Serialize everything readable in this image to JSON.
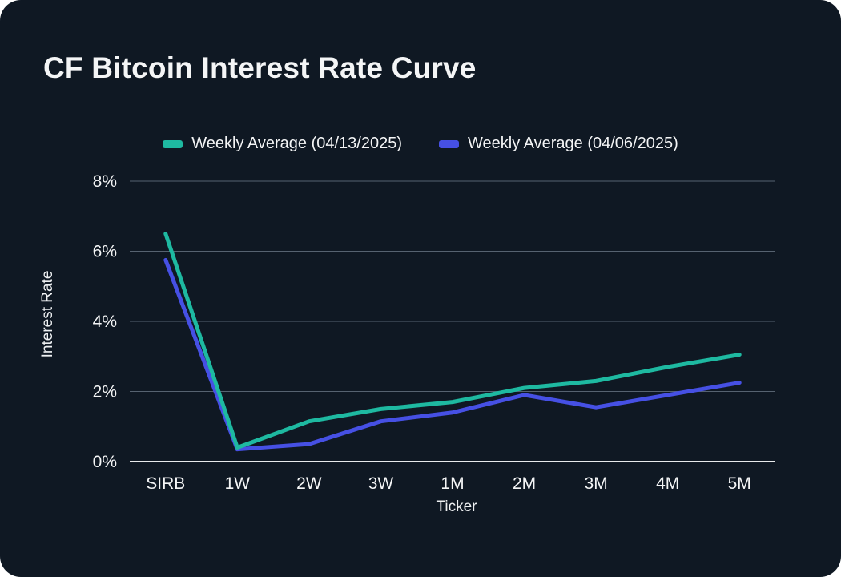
{
  "theme": {
    "page_bg": "#ffffff",
    "card_bg": "#0f1823",
    "text": "#f4f5f6",
    "grid": "#566270",
    "axis": "#e8eaec"
  },
  "chart_data": {
    "type": "line",
    "title": "CF Bitcoin Interest Rate Curve",
    "xlabel": "Ticker",
    "ylabel": "Interest Rate",
    "categories": [
      "SIRB",
      "1W",
      "2W",
      "3W",
      "1M",
      "2M",
      "3M",
      "4M",
      "5M"
    ],
    "series": [
      {
        "name": "Weekly Average (04/13/2025)",
        "color": "#1eb9a1",
        "values": [
          6.5,
          0.4,
          1.15,
          1.5,
          1.7,
          2.1,
          2.3,
          2.7,
          3.05
        ]
      },
      {
        "name": "Weekly Average (04/06/2025)",
        "color": "#4650e4",
        "values": [
          5.75,
          0.35,
          0.5,
          1.15,
          1.4,
          1.9,
          1.55,
          1.9,
          2.25
        ]
      }
    ],
    "ylim": [
      0,
      8
    ],
    "yticks": [
      0,
      2,
      4,
      6,
      8
    ],
    "ytick_labels": [
      "0%",
      "2%",
      "4%",
      "6%",
      "8%"
    ],
    "grid": true,
    "legend_position": "top"
  }
}
